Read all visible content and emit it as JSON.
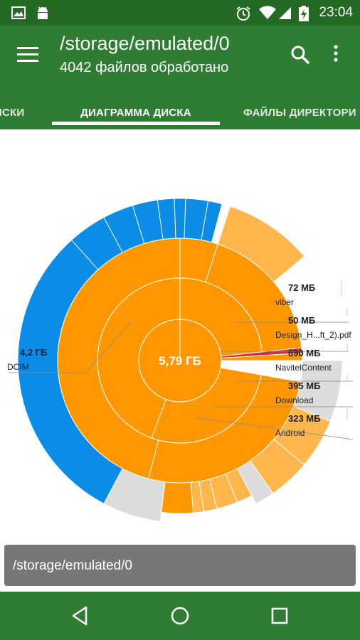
{
  "status_bar": {
    "time": "23:04"
  },
  "app_bar": {
    "title": "/storage/emulated/0",
    "subtitle": "4042 файлов обработано"
  },
  "tabs": [
    {
      "label": "ДИСКИ",
      "visible_text": "ИСКИ"
    },
    {
      "label": "ДИАГРАММА ДИСКА",
      "active": true
    },
    {
      "label": "ФАЙЛЫ ДИРЕКТОРИ"
    }
  ],
  "chart": {
    "center_label": "5,79 ГБ",
    "left_label": {
      "size": "4,2 ГБ",
      "name": "DCIM"
    },
    "right_labels": [
      {
        "size": "72 МБ",
        "name": "viber"
      },
      {
        "size": "50 МБ",
        "name": "Design_H...ft_2).pdf"
      },
      {
        "size": "690 МБ",
        "name": "NavitelContent"
      },
      {
        "size": "395 МБ",
        "name": "Download"
      },
      {
        "size": "323 МБ",
        "name": "Android"
      }
    ],
    "colors": {
      "orange": "#ff9800",
      "light_orange": "#ffb74d",
      "blue": "#0b8de7",
      "gray": "#dcdcdc",
      "red": "#d32f2f"
    }
  },
  "path_bar": {
    "path": "/storage/emulated/0"
  }
}
